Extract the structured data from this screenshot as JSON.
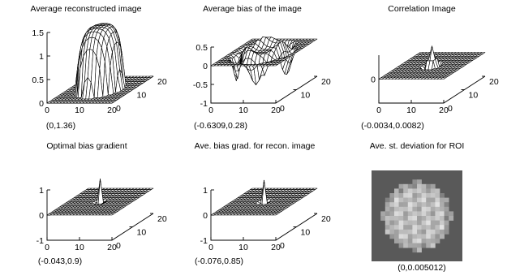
{
  "chart_data": [
    {
      "type": "surface",
      "title": "Average reconstructed image",
      "grid_size": 20,
      "x_ticks": [
        0,
        10,
        20
      ],
      "y_ticks": [
        0,
        10,
        20
      ],
      "z_ticks": [
        "0",
        "0.5",
        "1",
        "1.5"
      ],
      "zlim": [
        0,
        1.5
      ],
      "shape": "plateau",
      "peak_value": 1.36,
      "range_label": "(0,1.36)"
    },
    {
      "type": "surface",
      "title": "Average bias of the image",
      "grid_size": 20,
      "x_ticks": [
        0,
        10,
        20
      ],
      "y_ticks": [
        0,
        10,
        20
      ],
      "z_ticks": [
        "-1",
        "-0.5",
        "0",
        "0.5"
      ],
      "zlim": [
        -1,
        0.5
      ],
      "shape": "ring",
      "min_value": -0.6309,
      "max_value": 0.28,
      "range_label": "(-0.6309,0.28)"
    },
    {
      "type": "surface",
      "title": "Correlation Image",
      "grid_size": 20,
      "x_ticks": [
        0,
        10,
        20
      ],
      "y_ticks": [
        0,
        10,
        20
      ],
      "z_ticks": [
        "0"
      ],
      "zlim": [
        -0.01,
        0.01
      ],
      "shape": "spike-oscillating",
      "min_value": -0.0034,
      "max_value": 0.0082,
      "range_label": "(-0.0034,0.0082)"
    },
    {
      "type": "surface",
      "title": "Optimal bias gradient",
      "grid_size": 20,
      "x_ticks": [
        0,
        10,
        20
      ],
      "y_ticks": [
        0,
        10,
        20
      ],
      "z_ticks": [
        "-1",
        "0",
        "1"
      ],
      "zlim": [
        -1,
        1
      ],
      "shape": "spike",
      "min_value": -0.043,
      "max_value": 0.9,
      "range_label": "(-0.043,0.9)"
    },
    {
      "type": "surface",
      "title": "Ave. bias grad. for recon. image",
      "grid_size": 20,
      "x_ticks": [
        0,
        10,
        20
      ],
      "y_ticks": [
        0,
        10,
        20
      ],
      "z_ticks": [
        "-1",
        "0",
        "1"
      ],
      "zlim": [
        -1,
        1
      ],
      "shape": "spike",
      "min_value": -0.076,
      "max_value": 0.85,
      "range_label": "(-0.076,0.85)"
    },
    {
      "type": "heatmap",
      "title": "Ave. st. deviation for ROI",
      "grid_size": 20,
      "colormap": "gray",
      "background": "#595959",
      "min_value": 0,
      "max_value": 0.005012,
      "range_label": "(0,0.005012)"
    }
  ]
}
